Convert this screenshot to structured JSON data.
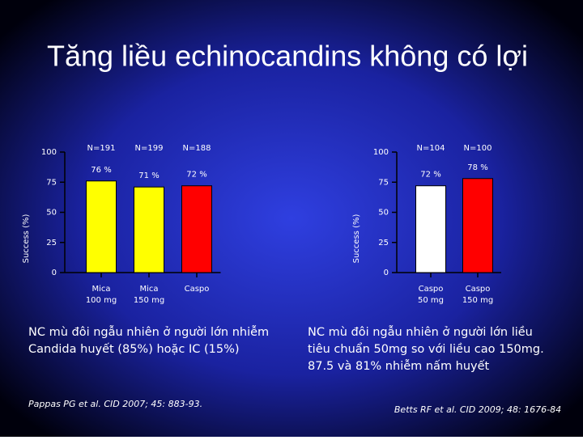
{
  "title": "Tăng liều echinocandins không có lợi",
  "chart_data": [
    {
      "type": "bar",
      "y_label": "Success (%)",
      "categories": [
        "Mica\n100 mg",
        "Mica\n150 mg",
        "Caspo"
      ],
      "n_labels": [
        "N=191",
        "N=199",
        "N=188"
      ],
      "values": [
        76,
        71,
        72
      ],
      "value_labels": [
        "76 %",
        "71 %",
        "72 %"
      ],
      "colors": [
        "#ffff00",
        "#ffff00",
        "#ff0000"
      ],
      "ylim": [
        0,
        100
      ],
      "yticks": [
        0,
        25,
        50,
        75,
        100
      ]
    },
    {
      "type": "bar",
      "y_label": "Success (%)",
      "categories": [
        "Caspo\n50 mg",
        "Caspo\n150 mg"
      ],
      "n_labels": [
        "N=104",
        "N=100"
      ],
      "values": [
        72,
        78
      ],
      "value_labels": [
        "72 %",
        "78 %"
      ],
      "colors": [
        "#ffffff",
        "#ff0000"
      ],
      "ylim": [
        0,
        100
      ],
      "yticks": [
        0,
        25,
        50,
        75,
        100
      ]
    }
  ],
  "notes": [
    {
      "lines": [
        "NC mù đôi ngẫu nhiên ở người lớn nhiễm",
        "Candida huyết (85%) hoặc IC (15%)"
      ],
      "citation": "Pappas PG et al. CID 2007; 45: 883-93."
    },
    {
      "lines": [
        "NC mù đôi ngẫu nhiên ở người lớn  liều",
        "tiêu chuẩn 50mg so với liều cao 150mg.",
        "87.5 và 81% nhiễm nấm huyết"
      ],
      "citation": "Betts RF  et al. CID 2009; 48: 1676-84"
    }
  ]
}
